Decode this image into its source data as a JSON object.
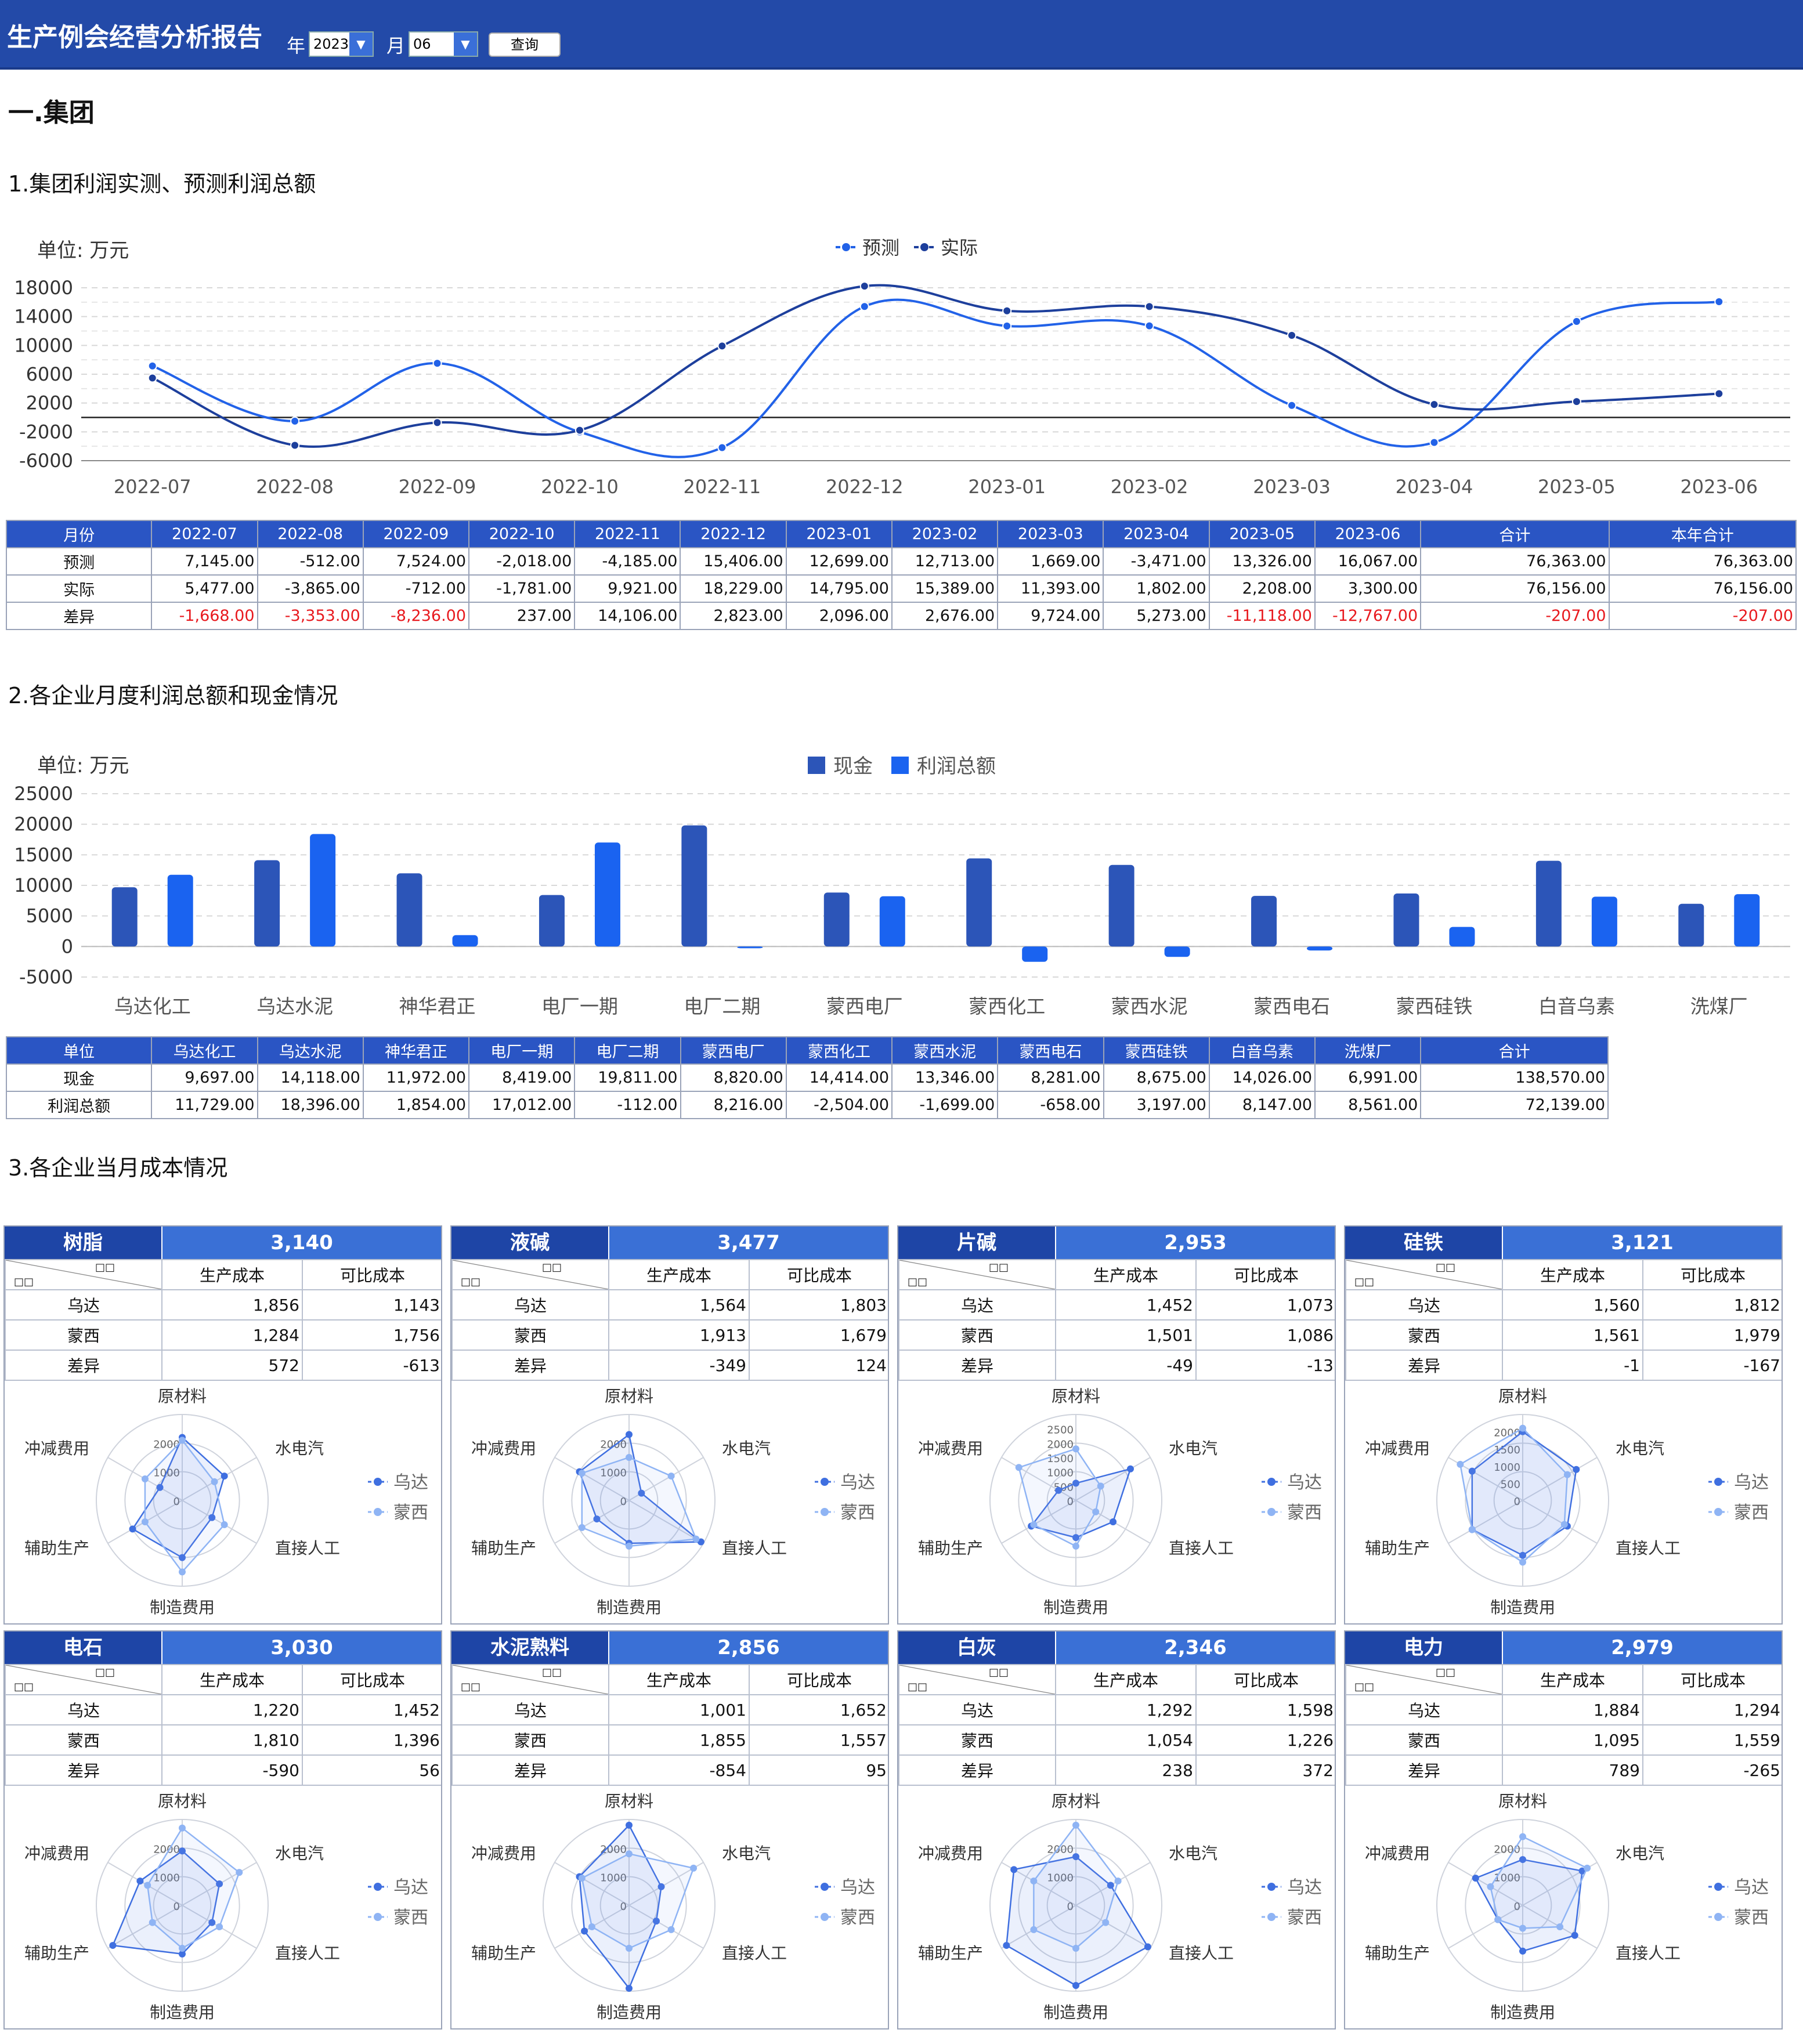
{
  "header": {
    "title": "生产例会经营分析报告",
    "year_label": "年",
    "year_value": "2023",
    "month_label": "月",
    "month_value": "06",
    "query_label": "查询"
  },
  "section1": {
    "title": "一.集团"
  },
  "chart1": {
    "heading": "1.集团利润实测、预测利润总额",
    "unit": "单位:  万元"
  },
  "chart2": {
    "heading": "2.各企业月度利润总额和现金情况",
    "unit": "单位:  万元"
  },
  "section3": {
    "heading": "3.各企业当月成本情况"
  },
  "chart_data": [
    {
      "type": "line",
      "ylim": [
        -6000,
        18000
      ],
      "yticks": [
        18000,
        14000,
        10000,
        6000,
        2000,
        -2000,
        -6000
      ],
      "categories": [
        "2022-07",
        "2022-08",
        "2022-09",
        "2022-10",
        "2022-11",
        "2022-12",
        "2023-01",
        "2023-02",
        "2023-03",
        "2023-04",
        "2023-05",
        "2023-06"
      ],
      "series": [
        {
          "name": "预测",
          "color": "#2262e8",
          "values": [
            7145,
            -512,
            7524,
            -2018,
            -4185,
            15406,
            12699,
            12713,
            1669,
            -3471,
            13326,
            16067
          ]
        },
        {
          "name": "实际",
          "color": "#1d3f9c",
          "values": [
            5477,
            -3865,
            -712,
            -1781,
            9921,
            18229,
            14795,
            15389,
            11393,
            1802,
            2208,
            3300
          ]
        }
      ]
    },
    {
      "type": "bar",
      "ylim": [
        -5000,
        25000
      ],
      "yticks": [
        25000,
        20000,
        15000,
        10000,
        5000,
        0,
        -5000
      ],
      "categories": [
        "乌达化工",
        "乌达水泥",
        "神华君正",
        "电厂一期",
        "电厂二期",
        "蒙西电厂",
        "蒙西化工",
        "蒙西水泥",
        "蒙西电石",
        "蒙西硅铁",
        "白音乌素",
        "洗煤厂"
      ],
      "series": [
        {
          "name": "现金",
          "color": "#2c55b8",
          "values": [
            9697,
            14118,
            11972,
            8419,
            19811,
            8820,
            14414,
            13346,
            8281,
            8675,
            14026,
            6991
          ]
        },
        {
          "name": "利润总额",
          "color": "#1a63f0",
          "values": [
            11729,
            18396,
            1854,
            17012,
            -112,
            8216,
            -2504,
            -1699,
            -658,
            3197,
            8147,
            8561
          ]
        }
      ]
    }
  ],
  "table1": {
    "headers": [
      "月份",
      "2022-07",
      "2022-08",
      "2022-09",
      "2022-10",
      "2022-11",
      "2022-12",
      "2023-01",
      "2023-02",
      "2023-03",
      "2023-04",
      "2023-05",
      "2023-06",
      "合计",
      "本年合计"
    ],
    "rows": [
      {
        "label": "预测",
        "cells": [
          "7,145.00",
          "-512.00",
          "7,524.00",
          "-2,018.00",
          "-4,185.00",
          "15,406.00",
          "12,699.00",
          "12,713.00",
          "1,669.00",
          "-3,471.00",
          "13,326.00",
          "16,067.00",
          "76,363.00",
          "76,363.00"
        ]
      },
      {
        "label": "实际",
        "cells": [
          "5,477.00",
          "-3,865.00",
          "-712.00",
          "-1,781.00",
          "9,921.00",
          "18,229.00",
          "14,795.00",
          "15,389.00",
          "11,393.00",
          "1,802.00",
          "2,208.00",
          "3,300.00",
          "76,156.00",
          "76,156.00"
        ]
      },
      {
        "label": "差异",
        "cells": [
          "-1,668.00",
          "-3,353.00",
          "-8,236.00",
          "237.00",
          "14,106.00",
          "2,823.00",
          "2,096.00",
          "2,676.00",
          "9,724.00",
          "5,273.00",
          "-11,118.00",
          "-12,767.00",
          "-207.00",
          "-207.00"
        ]
      }
    ]
  },
  "table2": {
    "headers": [
      "单位",
      "乌达化工",
      "乌达水泥",
      "神华君正",
      "电厂一期",
      "电厂二期",
      "蒙西电厂",
      "蒙西化工",
      "蒙西水泥",
      "蒙西电石",
      "蒙西硅铁",
      "白音乌素",
      "洗煤厂",
      "合计"
    ],
    "rows": [
      {
        "label": "现金",
        "cells": [
          "9,697.00",
          "14,118.00",
          "11,972.00",
          "8,419.00",
          "19,811.00",
          "8,820.00",
          "14,414.00",
          "13,346.00",
          "8,281.00",
          "8,675.00",
          "14,026.00",
          "6,991.00",
          "138,570.00"
        ]
      },
      {
        "label": "利润总额",
        "cells": [
          "11,729.00",
          "18,396.00",
          "1,854.00",
          "17,012.00",
          "-112.00",
          "8,216.00",
          "-2,504.00",
          "-1,699.00",
          "-658.00",
          "3,197.00",
          "8,147.00",
          "8,561.00",
          "72,139.00"
        ]
      }
    ]
  },
  "cost_cards": {
    "diag_top": "□□",
    "diag_bottom": "□□",
    "col1": "生产成本",
    "col2": "可比成本",
    "row_labels": [
      "乌达",
      "蒙西",
      "差异"
    ],
    "axes": [
      "原材料",
      "水电汽",
      "直接人工",
      "制造费用",
      "辅助生产",
      "冲减费用"
    ],
    "legend": [
      "乌达",
      "蒙西"
    ],
    "items": [
      {
        "name": "树脂",
        "value": "3,140",
        "rows": [
          [
            "1,856",
            "1,143"
          ],
          [
            "1,284",
            "1,756"
          ],
          [
            "572",
            "-613"
          ]
        ],
        "ticks": [
          "2000",
          "1000",
          "0"
        ],
        "max": 3000,
        "s1": [
          2200,
          1700,
          1200,
          2000,
          2000,
          900
        ],
        "s2": [
          2100,
          1300,
          1700,
          2500,
          1500,
          1500
        ]
      },
      {
        "name": "液碱",
        "value": "3,477",
        "rows": [
          [
            "1,564",
            "1,803"
          ],
          [
            "1,913",
            "1,679"
          ],
          [
            "-349",
            "124"
          ]
        ],
        "ticks": [
          "2000",
          "1000",
          "0"
        ],
        "max": 3000,
        "s1": [
          2300,
          500,
          2900,
          1500,
          1300,
          2000
        ],
        "s2": [
          1500,
          1700,
          2700,
          1600,
          1900,
          1900
        ]
      },
      {
        "name": "片碱",
        "value": "2,953",
        "rows": [
          [
            "1,452",
            "1,073"
          ],
          [
            "1,501",
            "1,086"
          ],
          [
            "-49",
            "-13"
          ]
        ],
        "ticks": [
          "2500",
          "2000",
          "1500",
          "1000",
          "500",
          "0"
        ],
        "max": 3000,
        "s1": [
          600,
          2200,
          1500,
          1300,
          1800,
          700
        ],
        "s2": [
          1800,
          1000,
          800,
          1600,
          1700,
          2300
        ]
      },
      {
        "name": "硅铁",
        "value": "3,121",
        "rows": [
          [
            "1,560",
            "1,812"
          ],
          [
            "1,561",
            "1,979"
          ],
          [
            "-1",
            "-167"
          ]
        ],
        "ticks": [
          "2000",
          "1500",
          "1000",
          "500",
          "0"
        ],
        "max": 2500,
        "s1": [
          2000,
          1800,
          1500,
          1600,
          1700,
          1700
        ],
        "s2": [
          2100,
          1500,
          1400,
          1800,
          1700,
          2100
        ]
      },
      {
        "name": "电石",
        "value": "3,030",
        "rows": [
          [
            "1,220",
            "1,452"
          ],
          [
            "1,810",
            "1,396"
          ],
          [
            "-590",
            "56"
          ]
        ],
        "ticks": [
          "2000",
          "1000",
          "0"
        ],
        "max": 3000,
        "s1": [
          1900,
          1500,
          1200,
          1700,
          2800,
          1700
        ],
        "s2": [
          2700,
          2300,
          1500,
          1500,
          1200,
          1400
        ]
      },
      {
        "name": "水泥熟料",
        "value": "2,856",
        "rows": [
          [
            "1,001",
            "1,652"
          ],
          [
            "1,855",
            "1,557"
          ],
          [
            "-854",
            "95"
          ]
        ],
        "ticks": [
          "2000",
          "1000",
          "0"
        ],
        "max": 3000,
        "s1": [
          2800,
          1300,
          1100,
          2900,
          1800,
          2000
        ],
        "s2": [
          1800,
          2600,
          1700,
          1500,
          1500,
          1900
        ]
      },
      {
        "name": "白灰",
        "value": "2,346",
        "rows": [
          [
            "1,292",
            "1,598"
          ],
          [
            "1,054",
            "1,226"
          ],
          [
            "238",
            "372"
          ]
        ],
        "ticks": [
          "2000",
          "1000",
          "0"
        ],
        "max": 3000,
        "s1": [
          1700,
          1400,
          2900,
          2800,
          2800,
          2500
        ],
        "s2": [
          2800,
          1700,
          1200,
          1500,
          1700,
          1700
        ]
      },
      {
        "name": "电力",
        "value": "2,979",
        "rows": [
          [
            "1,884",
            "1,294"
          ],
          [
            "1,095",
            "1,559"
          ],
          [
            "789",
            "-265"
          ]
        ],
        "ticks": [
          "2000",
          "1000",
          "0"
        ],
        "max": 3000,
        "s1": [
          1600,
          2400,
          2100,
          1600,
          1000,
          1900
        ],
        "s2": [
          2400,
          2600,
          1500,
          800,
          1000,
          1300
        ]
      }
    ]
  }
}
